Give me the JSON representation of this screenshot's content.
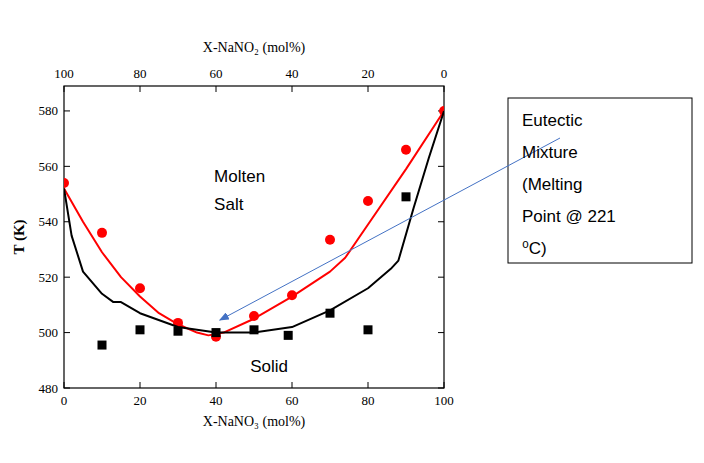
{
  "chart_data": {
    "type": "line",
    "xlabel": "X-NaNO₃ (mol%)",
    "ylabel": "T (K)",
    "x2label": "X-NaNO₂ (mol%)",
    "xlim": [
      0,
      100
    ],
    "xticks": [
      0,
      20,
      40,
      60,
      80,
      100
    ],
    "x2lim": [
      100,
      0
    ],
    "x2ticks": [
      100,
      80,
      60,
      40,
      20,
      0
    ],
    "ylim": [
      480,
      589
    ],
    "yticks": [
      480,
      500,
      520,
      540,
      560,
      580
    ],
    "grid": false,
    "series": [
      {
        "type": "line",
        "color": "#ff0000",
        "line_style": "solid",
        "marker": "none",
        "x": [
          0,
          5,
          10,
          15,
          20,
          25,
          30,
          35,
          38,
          42,
          50,
          60,
          70,
          74,
          80,
          90,
          100
        ],
        "values": [
          552,
          540,
          529,
          520,
          513,
          507,
          503,
          500,
          499,
          500,
          505,
          513,
          522,
          527,
          539,
          559,
          580
        ]
      },
      {
        "type": "scatter",
        "color": "#ff0000",
        "line_style": "none",
        "marker": "circle",
        "x": [
          0,
          10,
          20,
          30,
          40,
          50,
          60,
          70,
          80,
          90,
          100
        ],
        "values": [
          554,
          536,
          516,
          503.5,
          498.5,
          506,
          513.5,
          533.5,
          547.5,
          566,
          580
        ]
      },
      {
        "type": "line",
        "color": "#000000",
        "line_style": "solid",
        "marker": "none",
        "x": [
          0,
          2,
          5,
          10,
          13,
          15,
          20,
          30,
          40,
          50,
          60,
          70,
          80,
          86,
          88,
          92,
          96,
          100
        ],
        "values": [
          552,
          535,
          522,
          514,
          511,
          511,
          507,
          502,
          500,
          500,
          502,
          508,
          516,
          523,
          526,
          545,
          563,
          580
        ]
      },
      {
        "type": "scatter",
        "color": "#000000",
        "line_style": "none",
        "marker": "square",
        "x": [
          10,
          20,
          30,
          40,
          50,
          59,
          70,
          80,
          90
        ],
        "values": [
          495.5,
          501,
          500.5,
          500,
          501,
          499,
          507,
          501,
          549
        ]
      }
    ],
    "labels": [
      {
        "lines": [
          "Molten",
          "Salt"
        ],
        "x": 39.5,
        "y": 554.4
      },
      {
        "lines": [
          "Solid"
        ],
        "x": 49,
        "y": 485.8
      }
    ],
    "callout": {
      "lines": [
        "Eutectic",
        "Mixture",
        "(Melting",
        "Point @ 221",
        "⁰C)"
      ],
      "x": 41,
      "y": 504.5
    }
  }
}
